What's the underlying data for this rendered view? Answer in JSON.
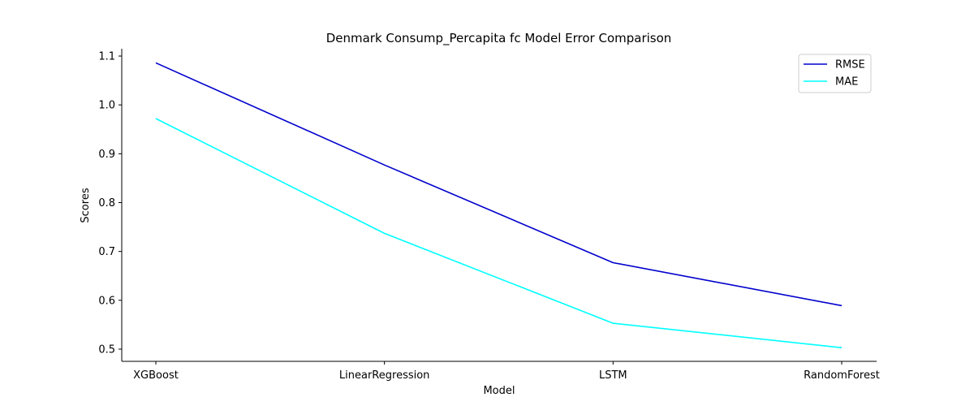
{
  "chart_data": {
    "type": "line",
    "title": "Denmark Consump_Percapita fc Model Error Comparison",
    "xlabel": "Model",
    "ylabel": "Scores",
    "categories": [
      "XGBoost",
      "LinearRegression",
      "LSTM",
      "RandomForest"
    ],
    "series": [
      {
        "name": "RMSE",
        "color": "#0000cd",
        "values": [
          1.086,
          0.877,
          0.677,
          0.589
        ]
      },
      {
        "name": "MAE",
        "color": "#00ffff",
        "values": [
          0.972,
          0.737,
          0.553,
          0.503
        ]
      }
    ],
    "yticks": [
      "0.5",
      "0.6",
      "0.7",
      "0.8",
      "0.9",
      "1.0",
      "1.1"
    ],
    "ylim": [
      0.475,
      1.115
    ],
    "grid": false,
    "legend_position": "top-right"
  }
}
